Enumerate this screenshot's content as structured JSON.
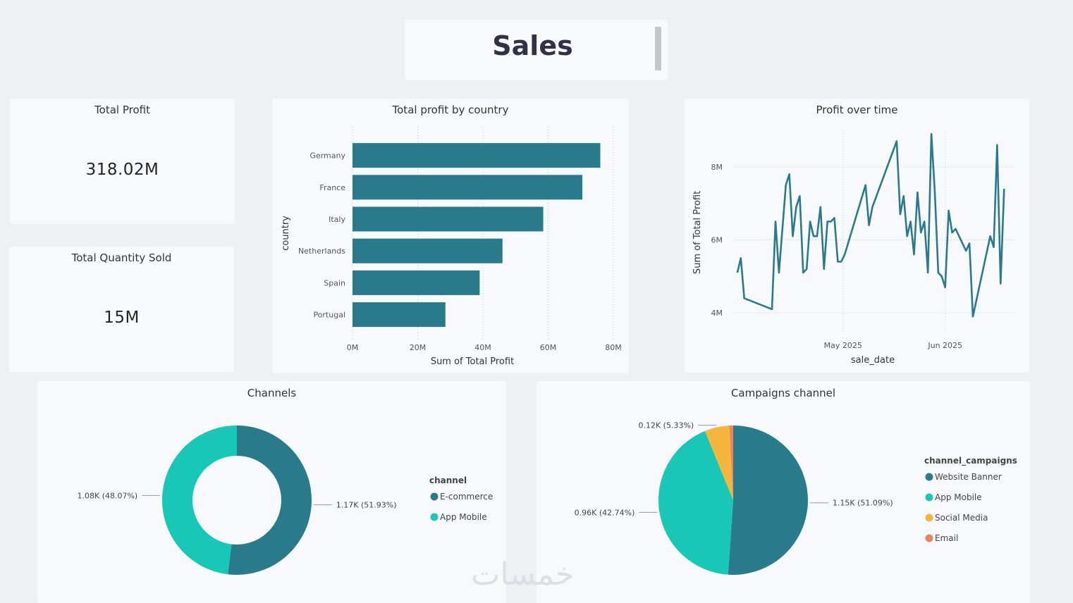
{
  "header": {
    "title": "Sales"
  },
  "kpis": {
    "total_profit": {
      "label": "Total Profit",
      "value": "318.02M"
    },
    "total_quantity": {
      "label": "Total Quantity Sold",
      "value": "15M"
    }
  },
  "chart_data": [
    {
      "id": "profit_by_country",
      "type": "bar",
      "orientation": "horizontal",
      "title": "Total profit by country",
      "xlabel": "Sum of Total Profit",
      "ylabel": "country",
      "categories": [
        "Germany",
        "France",
        "Italy",
        "Netherlands",
        "Spain",
        "Portugal"
      ],
      "values": [
        76,
        70.5,
        58.5,
        46,
        39,
        28.5
      ],
      "xlim": [
        0,
        80
      ],
      "xticks": [
        0,
        20,
        40,
        60,
        80
      ],
      "xtick_labels": [
        "0M",
        "20M",
        "40M",
        "60M",
        "80M"
      ],
      "color": "#297b8b"
    },
    {
      "id": "profit_over_time",
      "type": "line",
      "title": "Profit over time",
      "xlabel": "sale_date",
      "ylabel": "Sum of Total Profit",
      "x_days": [
        0,
        1,
        2,
        10,
        11,
        12,
        14,
        15,
        16,
        17,
        18,
        19,
        20,
        21,
        22,
        23,
        24,
        25,
        26,
        27,
        28,
        29,
        30,
        31,
        37,
        38,
        39,
        46,
        47,
        48,
        49,
        50,
        51,
        52,
        53,
        54,
        55,
        56,
        57,
        58,
        59,
        60,
        61,
        62,
        63,
        64,
        66,
        67,
        68,
        73,
        74,
        75,
        76,
        77
      ],
      "values": [
        5.1,
        5.5,
        4.4,
        4.1,
        6.5,
        5.1,
        7.5,
        7.8,
        6.1,
        6.9,
        7.2,
        5.1,
        5.2,
        6.5,
        6.1,
        6.1,
        6.9,
        5.2,
        6.5,
        6.5,
        6.6,
        5.4,
        5.4,
        5.6,
        7.5,
        6.4,
        6.9,
        8.7,
        6.7,
        7.2,
        6.1,
        6.5,
        5.6,
        7.3,
        6.2,
        6.5,
        5.1,
        8.9,
        7.3,
        5.1,
        5.0,
        4.7,
        6.8,
        6.2,
        6.3,
        6.1,
        5.7,
        5.9,
        3.9,
        6.1,
        5.8,
        8.6,
        4.8,
        7.4
      ],
      "ylim": [
        3.5,
        9.0
      ],
      "yticks": [
        4,
        6,
        8
      ],
      "ytick_labels": [
        "4M",
        "6M",
        "8M"
      ],
      "xticks_days": [
        30.5,
        60
      ],
      "xtick_labels": [
        "May 2025",
        "Jun 2025"
      ],
      "x_range_days": [
        -1,
        80
      ],
      "color": "#297b8b"
    },
    {
      "id": "channels",
      "type": "pie",
      "variant": "donut",
      "title": "Channels",
      "legend_title": "channel",
      "labels": [
        "E-commerce",
        "App Mobile"
      ],
      "values": [
        51.93,
        48.07
      ],
      "data_labels": [
        "1.17K (51.93%)",
        "1.08K (48.07%)"
      ],
      "colors": [
        "#297b8b",
        "#18c7b5"
      ]
    },
    {
      "id": "campaigns_channel",
      "type": "pie",
      "title": "Campaigns channel",
      "legend_title": "channel_campaigns",
      "labels": [
        "Website Banner",
        "App Mobile",
        "Social Media",
        "Email"
      ],
      "values": [
        51.09,
        42.74,
        5.33,
        0.84
      ],
      "data_labels": [
        "1.15K (51.09%)",
        "0.96K (42.74%)",
        "0.12K (5.33%)",
        ""
      ],
      "colors": [
        "#297b8b",
        "#18c7b5",
        "#f6b63e",
        "#e8855a"
      ]
    }
  ],
  "watermark": "خمسات"
}
